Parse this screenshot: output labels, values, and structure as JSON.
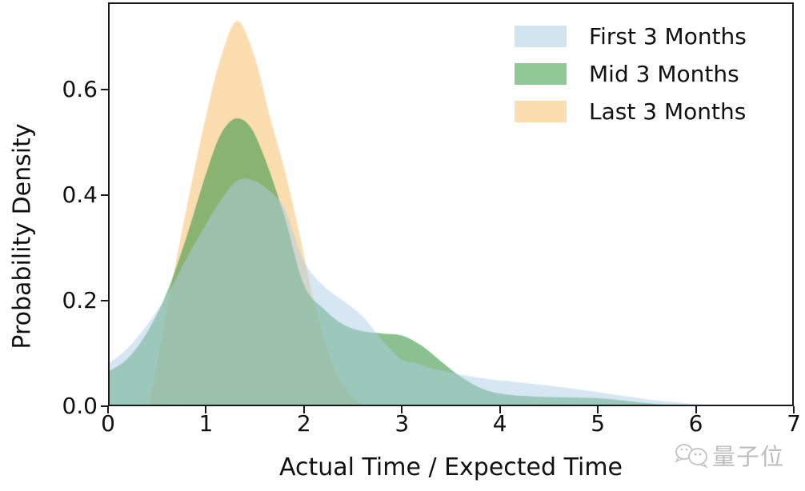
{
  "chart_data": {
    "type": "area",
    "title": "",
    "xlabel": "Actual Time / Expected Time",
    "ylabel": "Probability Density",
    "xlim": [
      0,
      7
    ],
    "ylim": [
      0,
      0.765
    ],
    "xticks": [
      "0",
      "1",
      "2",
      "3",
      "4",
      "5",
      "6",
      "7"
    ],
    "yticks": [
      "0.0",
      "0.2",
      "0.4",
      "0.6"
    ],
    "grid": false,
    "legend_position": "upper right",
    "frame_color": "#1a1a1a",
    "series": [
      {
        "name": "First 3 Months",
        "fill_color": "rgba(173,205,230,0.5)",
        "legend_color": "#d2e4f0",
        "peak": {
          "x": 1.45,
          "y": 0.43
        },
        "x": [
          0,
          0.2,
          0.4,
          0.6,
          0.8,
          1.0,
          1.15,
          1.3,
          1.45,
          1.6,
          1.8,
          2.0,
          2.2,
          2.4,
          2.6,
          2.8,
          3.0,
          3.15,
          3.3,
          3.6,
          3.9,
          4.2,
          4.5,
          4.8,
          5.1,
          5.4,
          5.7,
          6.0,
          6.3
        ],
        "y": [
          0.08,
          0.11,
          0.155,
          0.21,
          0.28,
          0.345,
          0.39,
          0.425,
          0.43,
          0.415,
          0.375,
          0.275,
          0.228,
          0.2,
          0.17,
          0.125,
          0.088,
          0.082,
          0.072,
          0.06,
          0.051,
          0.045,
          0.039,
          0.032,
          0.024,
          0.016,
          0.009,
          0.004,
          0.0
        ]
      },
      {
        "name": "Mid 3 Months",
        "fill_color": "rgba(62,152,72,0.6)",
        "legend_color": "#90c996",
        "peak": {
          "x": 1.3,
          "y": 0.545
        },
        "x": [
          0,
          0.2,
          0.4,
          0.6,
          0.8,
          1.0,
          1.15,
          1.3,
          1.45,
          1.6,
          1.8,
          2.0,
          2.2,
          2.4,
          2.6,
          2.8,
          3.0,
          3.2,
          3.4,
          3.6,
          3.8,
          4.0,
          4.3,
          4.6,
          5.0,
          5.3,
          5.6,
          5.9
        ],
        "y": [
          0.065,
          0.09,
          0.14,
          0.215,
          0.32,
          0.44,
          0.515,
          0.545,
          0.53,
          0.47,
          0.36,
          0.23,
          0.185,
          0.155,
          0.142,
          0.138,
          0.134,
          0.115,
          0.085,
          0.056,
          0.035,
          0.024,
          0.019,
          0.017,
          0.015,
          0.01,
          0.004,
          0.0
        ]
      },
      {
        "name": "Last 3 Months",
        "fill_color": "rgba(247,187,97,0.5)",
        "legend_color": "#fbddb0",
        "peak": {
          "x": 1.32,
          "y": 0.73
        },
        "x": [
          0.42,
          0.55,
          0.7,
          0.85,
          1.0,
          1.15,
          1.32,
          1.5,
          1.65,
          1.8,
          1.95,
          2.1,
          2.25,
          2.4,
          2.6
        ],
        "y": [
          0.0,
          0.13,
          0.28,
          0.42,
          0.55,
          0.66,
          0.73,
          0.66,
          0.55,
          0.45,
          0.33,
          0.2,
          0.1,
          0.04,
          0.0
        ]
      }
    ],
    "draw_order": [
      2,
      1,
      0
    ]
  },
  "watermark": {
    "text": "量子位"
  }
}
